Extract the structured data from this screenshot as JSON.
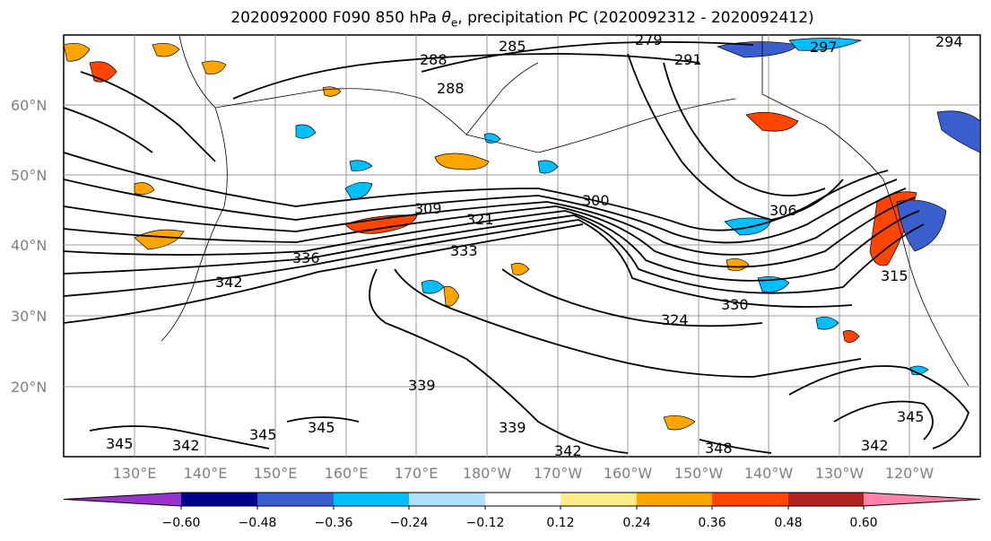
{
  "title": {
    "prefix": "2020092000 F090 850 hPa ",
    "theta_symbol": "θ",
    "theta_sub": "e",
    "suffix": ", precipitation PC (2020092312 - 2020092412)"
  },
  "lat_labels": [
    "60°N",
    "50°N",
    "40°N",
    "30°N",
    "20°N"
  ],
  "lon_labels": [
    "130°E",
    "140°E",
    "150°E",
    "160°E",
    "170°E",
    "180°W",
    "170°W",
    "160°W",
    "150°W",
    "140°W",
    "130°W",
    "120°W"
  ],
  "contour_labels": [
    "279",
    "285",
    "288",
    "288",
    "291",
    "294",
    "297",
    "300",
    "306",
    "309",
    "315",
    "321",
    "324",
    "330",
    "333",
    "336",
    "339",
    "339",
    "342",
    "342",
    "342",
    "342",
    "345",
    "345",
    "345",
    "345",
    "348"
  ],
  "colorbar": {
    "colors": [
      "#9932cc",
      "#00008b",
      "#3a5fcd",
      "#00bfff",
      "#b0e2ff",
      "#ffffff",
      "#ffec8b",
      "#ffa500",
      "#ff4500",
      "#b22222",
      "#ff82ab"
    ],
    "tick_labels": [
      "−0.60",
      "−0.48",
      "−0.36",
      "−0.24",
      "−0.12",
      "0.12",
      "0.24",
      "0.36",
      "0.48",
      "0.60"
    ]
  }
}
